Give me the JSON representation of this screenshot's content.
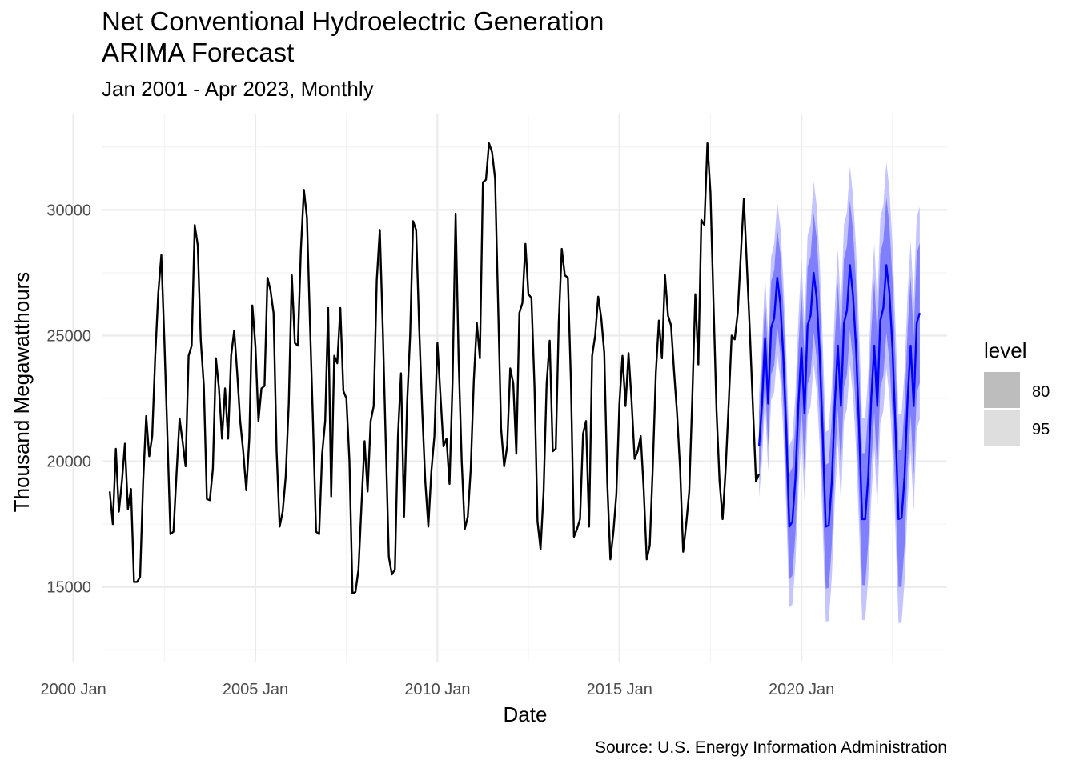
{
  "chart_data": {
    "type": "line",
    "title_line1": "Net Conventional Hydroelectric Generation",
    "title_line2": "ARIMA Forecast",
    "subtitle": "Jan 2001 - Apr 2023, Monthly",
    "xlabel": "Date",
    "ylabel": "Thousand Megawatthours",
    "caption": "Source: U.S. Energy Information Administration",
    "xlim": [
      2000.8,
      2024.0
    ],
    "ylim": [
      12000,
      33800
    ],
    "x_ticks": [
      {
        "value": 2000.0,
        "label": "2000 Jan"
      },
      {
        "value": 2005.0,
        "label": "2005 Jan"
      },
      {
        "value": 2010.0,
        "label": "2010 Jan"
      },
      {
        "value": 2015.0,
        "label": "2015 Jan"
      },
      {
        "value": 2020.0,
        "label": "2020 Jan"
      }
    ],
    "y_ticks": [
      {
        "value": 15000,
        "label": "15000"
      },
      {
        "value": 20000,
        "label": "20000"
      },
      {
        "value": 25000,
        "label": "25000"
      },
      {
        "value": 30000,
        "label": "30000"
      }
    ],
    "grid": true,
    "legend": {
      "title": "level",
      "position": "right",
      "entries": [
        {
          "label": "80",
          "color": "#bdbdbd"
        },
        {
          "label": "95",
          "color": "#dedede"
        }
      ]
    },
    "colors": {
      "actual": "#000000",
      "forecast": "#0000ff",
      "band80": "#8080ff",
      "band95": "#c4c4ff",
      "grid_major": "#ebebeb",
      "grid_minor": "#f4f4f4"
    },
    "actual_start": {
      "year": 2001,
      "month": 1
    },
    "actual_values": [
      18800,
      17500,
      20500,
      18000,
      19200,
      20700,
      18100,
      18900,
      15200,
      15200,
      15400,
      19200,
      21800,
      20200,
      21000,
      24200,
      26700,
      28200,
      24800,
      21000,
      17100,
      17200,
      19500,
      21700,
      20800,
      19800,
      24200,
      24600,
      29400,
      28600,
      24800,
      23000,
      18500,
      18450,
      19700,
      24100,
      22900,
      20900,
      22900,
      20900,
      24200,
      25200,
      23500,
      21600,
      20400,
      18850,
      20900,
      26200,
      24600,
      21600,
      22900,
      23000,
      27300,
      26800,
      25900,
      20400,
      17400,
      18000,
      19400,
      22300,
      27400,
      24700,
      24600,
      28400,
      30800,
      29700,
      25500,
      21500,
      17200,
      17100,
      20300,
      21600,
      26100,
      18600,
      24200,
      23900,
      26100,
      22800,
      22500,
      20000,
      14750,
      14800,
      15700,
      18300,
      20800,
      18800,
      21600,
      22200,
      27200,
      29200,
      25200,
      20700,
      16200,
      15500,
      15700,
      21000,
      23500,
      17800,
      22300,
      25000,
      29550,
      29200,
      25300,
      22000,
      19200,
      17400,
      19600,
      21000,
      24700,
      22600,
      20600,
      20900,
      19100,
      23200,
      29850,
      24000,
      20000,
      17300,
      17800,
      19700,
      23200,
      25500,
      24100,
      31100,
      31200,
      32650,
      32300,
      31250,
      26200,
      21300,
      19800,
      20600,
      23700,
      23100,
      20300,
      25900,
      26300,
      28650,
      26650,
      26500,
      23000,
      17600,
      16500,
      18800,
      23100,
      24800,
      20400,
      20500,
      25500,
      28450,
      27400,
      27300,
      23200,
      17000,
      17300,
      17700,
      21100,
      21600,
      17400,
      24200,
      25000,
      26550,
      25700,
      24300,
      19100,
      16100,
      17200,
      18700,
      22300,
      24200,
      22200,
      24300,
      22400,
      20100,
      20400,
      21000,
      18900,
      16100,
      16650,
      19800,
      23500,
      25600,
      24100,
      27400,
      25800,
      25400,
      23600,
      21900,
      19700,
      16400,
      17500,
      18800,
      22500,
      26650,
      23850,
      29600,
      29400,
      32650,
      30700,
      26300,
      22000,
      19200,
      17700,
      19700,
      22300,
      25000,
      24850,
      25900,
      28200,
      30450,
      27800,
      25100,
      22100,
      19200,
      19500
    ],
    "forecast_start": {
      "year": 2018,
      "month": 11
    },
    "forecast_values": [
      20600,
      22300,
      24900,
      22300,
      25300,
      25700,
      27300,
      26300,
      24200,
      21100,
      17400,
      17600,
      19300,
      22300,
      24500,
      21900,
      25400,
      25800,
      27500,
      26500,
      24300,
      21100,
      17400,
      17450,
      19200,
      22300,
      24600,
      22200,
      25500,
      26000,
      27800,
      26600,
      24500,
      21300,
      17700,
      17700,
      19400,
      22500,
      24600,
      22200,
      25600,
      26100,
      27800,
      26700,
      24500,
      21300,
      17700,
      17750,
      19400,
      22500,
      24600,
      22200,
      25500,
      25900
    ],
    "forecast_band_halfwidth_80": [
      1350,
      1500,
      1650,
      1750,
      1850,
      1900,
      1950,
      1980,
      2000,
      2050,
      2100,
      2150,
      2200,
      2250,
      2280,
      2300,
      2330,
      2350,
      2380,
      2400,
      2420,
      2440,
      2460,
      2480,
      2500,
      2500,
      2520,
      2540,
      2550,
      2560,
      2580,
      2590,
      2600,
      2610,
      2620,
      2630,
      2640,
      2650,
      2650,
      2660,
      2670,
      2680,
      2690,
      2700,
      2700,
      2710,
      2720,
      2730,
      2740,
      2750,
      2750,
      2760,
      2770,
      2780
    ],
    "forecast_band_halfwidth_95": [
      2050,
      2300,
      2550,
      2700,
      2850,
      2950,
      3000,
      3050,
      3080,
      3150,
      3220,
      3300,
      3380,
      3450,
      3500,
      3540,
      3580,
      3610,
      3650,
      3680,
      3710,
      3740,
      3770,
      3800,
      3820,
      3840,
      3860,
      3880,
      3900,
      3920,
      3940,
      3960,
      3980,
      4000,
      4010,
      4020,
      4040,
      4050,
      4060,
      4070,
      4080,
      4100,
      4110,
      4120,
      4130,
      4140,
      4150,
      4160,
      4170,
      4180,
      4190,
      4200,
      4210,
      4220
    ]
  }
}
